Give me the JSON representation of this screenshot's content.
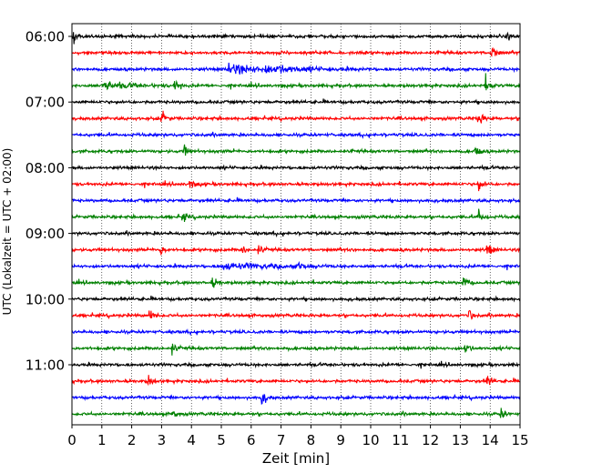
{
  "chart_data": {
    "type": "line",
    "title": "",
    "xlabel": "Zeit  [min]",
    "ylabel": "UTC (Lokalzeit = UTC + 02:00)",
    "xlim": [
      0,
      15
    ],
    "x_ticks": [
      0,
      1,
      2,
      3,
      4,
      5,
      6,
      7,
      8,
      9,
      10,
      11,
      12,
      13,
      14,
      15
    ],
    "x_tick_labels": [
      "0",
      "1",
      "2",
      "3",
      "4",
      "5",
      "6",
      "7",
      "8",
      "9",
      "10",
      "11",
      "12",
      "13",
      "14",
      "15"
    ],
    "y_tick_labels": [
      "06:00",
      "07:00",
      "08:00",
      "09:00",
      "10:00",
      "11:00"
    ],
    "y_tick_rows": [
      0,
      4,
      8,
      12,
      16,
      20
    ],
    "grid": "vertical dotted",
    "row_minutes": 15,
    "row_colors": [
      "#000000",
      "#ff0000",
      "#0000ff",
      "#008000"
    ],
    "series": [
      {
        "start": "06:00",
        "color": "#000000",
        "events": [
          {
            "t": 0.05,
            "a": 1.0
          },
          {
            "t": 14.6,
            "a": 0.9
          }
        ]
      },
      {
        "start": "06:15",
        "color": "#ff0000",
        "events": [
          {
            "t": 14.05,
            "a": 1.2
          }
        ]
      },
      {
        "start": "06:30",
        "color": "#0000ff",
        "events": [
          {
            "t": 5.2,
            "a": 0.7,
            "w": 1.0
          },
          {
            "t": 6.5,
            "a": 0.4,
            "w": 1.2
          }
        ]
      },
      {
        "start": "06:45",
        "color": "#008000",
        "events": [
          {
            "t": 1.0,
            "a": 0.5,
            "w": 0.8
          },
          {
            "t": 3.45,
            "a": 1.1
          },
          {
            "t": 13.85,
            "a": 1.2
          }
        ]
      },
      {
        "start": "07:00",
        "color": "#000000",
        "events": []
      },
      {
        "start": "07:15",
        "color": "#ff0000",
        "events": [
          {
            "t": 3.0,
            "a": 0.9
          },
          {
            "t": 13.6,
            "a": 1.1
          }
        ]
      },
      {
        "start": "07:30",
        "color": "#0000ff",
        "events": []
      },
      {
        "start": "07:45",
        "color": "#008000",
        "events": [
          {
            "t": 3.75,
            "a": 0.7
          },
          {
            "t": 13.5,
            "a": 1.0
          }
        ]
      },
      {
        "start": "08:00",
        "color": "#000000",
        "events": []
      },
      {
        "start": "08:15",
        "color": "#ff0000",
        "events": [
          {
            "t": 3.95,
            "a": 0.8
          },
          {
            "t": 13.6,
            "a": 1.0
          }
        ]
      },
      {
        "start": "08:30",
        "color": "#0000ff",
        "events": []
      },
      {
        "start": "08:45",
        "color": "#008000",
        "events": [
          {
            "t": 3.7,
            "a": 0.7
          },
          {
            "t": 13.6,
            "a": 1.0
          }
        ]
      },
      {
        "start": "09:00",
        "color": "#000000",
        "events": []
      },
      {
        "start": "09:15",
        "color": "#ff0000",
        "events": [
          {
            "t": 2.95,
            "a": 0.8
          },
          {
            "t": 5.7,
            "a": 0.5
          },
          {
            "t": 6.25,
            "a": 0.6
          },
          {
            "t": 13.9,
            "a": 1.1
          }
        ]
      },
      {
        "start": "09:30",
        "color": "#0000ff",
        "events": [
          {
            "t": 5.0,
            "a": 0.4,
            "w": 1.5
          },
          {
            "t": 7.6,
            "a": 0.6
          }
        ]
      },
      {
        "start": "09:45",
        "color": "#008000",
        "events": [
          {
            "t": 4.7,
            "a": 0.9
          },
          {
            "t": 13.1,
            "a": 0.9
          }
        ]
      },
      {
        "start": "10:00",
        "color": "#000000",
        "events": []
      },
      {
        "start": "10:15",
        "color": "#ff0000",
        "events": [
          {
            "t": 2.6,
            "a": 0.9
          },
          {
            "t": 13.3,
            "a": 0.7
          }
        ]
      },
      {
        "start": "10:30",
        "color": "#0000ff",
        "events": []
      },
      {
        "start": "10:45",
        "color": "#008000",
        "events": [
          {
            "t": 3.35,
            "a": 0.7
          },
          {
            "t": 13.15,
            "a": 0.9
          }
        ]
      },
      {
        "start": "11:00",
        "color": "#000000",
        "events": []
      },
      {
        "start": "11:15",
        "color": "#ff0000",
        "events": [
          {
            "t": 2.55,
            "a": 0.8
          },
          {
            "t": 13.9,
            "a": 0.8
          }
        ]
      },
      {
        "start": "11:30",
        "color": "#0000ff",
        "events": [
          {
            "t": 6.35,
            "a": 1.1
          }
        ]
      },
      {
        "start": "11:45",
        "color": "#008000",
        "events": [
          {
            "t": 3.35,
            "a": 0.7
          },
          {
            "t": 14.35,
            "a": 0.7
          }
        ]
      }
    ]
  }
}
